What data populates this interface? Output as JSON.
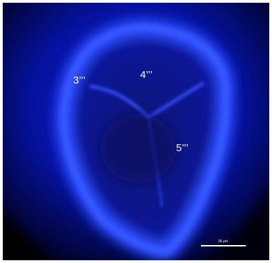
{
  "labels": [
    "3’’’",
    "4’’’",
    "5’’’"
  ],
  "scale_bar": {
    "label": "36 µm"
  }
}
